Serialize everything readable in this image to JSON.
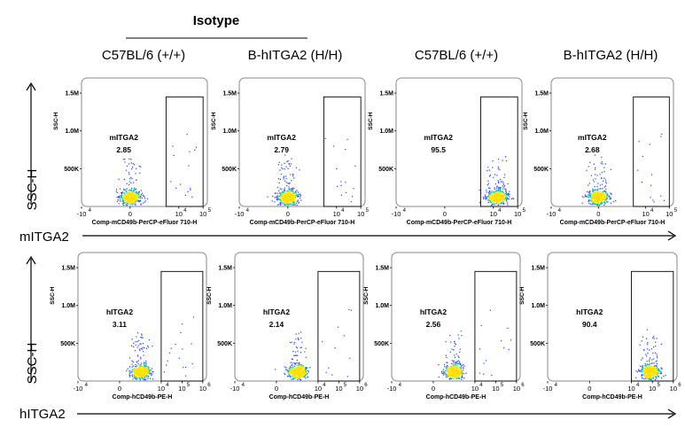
{
  "header": {
    "isotype": "Isotype",
    "columns": [
      "C57BL/6 (+/+)",
      "B-hITGA2 (H/H)",
      "C57BL/6 (+/+)",
      "B-hITGA2 (H/H)"
    ]
  },
  "rows": [
    {
      "y_axis_label": "SSC-H",
      "x_axis_label": "mITGA2"
    },
    {
      "y_axis_label": "SSC-H",
      "x_axis_label": "hITGA2"
    }
  ],
  "colors": {
    "gate": "#000000",
    "density_low": "#1f3cff",
    "density_mid": "#00c8a0",
    "density_high": "#ffe000"
  },
  "chart_data": [
    {
      "type": "scatter",
      "panel": "row1-col1",
      "xlabel": "Comp-mCD49b-PerCP-eFluor 710-H",
      "ylabel": "SSC-H",
      "xticks": [
        "-10",
        "4",
        "0",
        "10",
        "4",
        "10",
        "5"
      ],
      "yticks": [
        "1.5M",
        "1.0M",
        "500K"
      ],
      "gate": {
        "name": "mITGA2",
        "percent": "2.85",
        "x_range": [
          3000,
          100000
        ],
        "y_range": [
          0,
          1450000
        ]
      },
      "population": {
        "center_x": 0,
        "center_y": 120000,
        "positive_fraction": 0.0285
      }
    },
    {
      "type": "scatter",
      "panel": "row1-col2",
      "xlabel": "Comp-mCD49b-PerCP-eFluor 710-H",
      "ylabel": "SSC-H",
      "xticks": [
        "-10",
        "4",
        "0",
        "10",
        "4",
        "10",
        "5"
      ],
      "yticks": [
        "1.5M",
        "1.0M",
        "500K"
      ],
      "gate": {
        "name": "mITGA2",
        "percent": "2.79",
        "x_range": [
          3000,
          100000
        ],
        "y_range": [
          0,
          1450000
        ]
      },
      "population": {
        "center_x": 0,
        "center_y": 120000,
        "positive_fraction": 0.0279
      }
    },
    {
      "type": "scatter",
      "panel": "row1-col3",
      "xlabel": "Comp-mCD49b-PerCP-eFluor 710-H",
      "ylabel": "SSC-H",
      "xticks": [
        "-10",
        "4",
        "0",
        "10",
        "4",
        "10",
        "5"
      ],
      "yticks": [
        "1.5M",
        "1.0M",
        "500K"
      ],
      "gate": {
        "name": "mITGA2",
        "percent": "95.5",
        "x_range": [
          3000,
          100000
        ],
        "y_range": [
          0,
          1450000
        ]
      },
      "population": {
        "center_x": 15000,
        "center_y": 120000,
        "positive_fraction": 0.955
      }
    },
    {
      "type": "scatter",
      "panel": "row1-col4",
      "xlabel": "Comp-mCD49b-PerCP-eFluor 710-H",
      "ylabel": "SSC-H",
      "xticks": [
        "-10",
        "4",
        "0",
        "10",
        "4",
        "10",
        "5"
      ],
      "yticks": [
        "1.5M",
        "1.0M",
        "500K"
      ],
      "gate": {
        "name": "mITGA2",
        "percent": "2.68",
        "x_range": [
          3000,
          100000
        ],
        "y_range": [
          0,
          1450000
        ]
      },
      "population": {
        "center_x": 0,
        "center_y": 120000,
        "positive_fraction": 0.0268
      }
    },
    {
      "type": "scatter",
      "panel": "row2-col1",
      "xlabel": "Comp-hCD49b-PE-H",
      "ylabel": "SSC-H",
      "xticks": [
        "-10",
        "4",
        "0",
        "10",
        "4",
        "10",
        "5",
        "10",
        "6"
      ],
      "yticks": [
        "1.5M",
        "1.0M",
        "500K"
      ],
      "gate": {
        "name": "hITGA2",
        "percent": "3.11",
        "x_range": [
          10000,
          1000000
        ],
        "y_range": [
          0,
          1450000
        ]
      },
      "population": {
        "center_x": 1000,
        "center_y": 120000,
        "positive_fraction": 0.0311
      }
    },
    {
      "type": "scatter",
      "panel": "row2-col2",
      "xlabel": "Comp-hCD49b-PE-H",
      "ylabel": "SSC-H",
      "xticks": [
        "-10",
        "4",
        "0",
        "10",
        "4",
        "10",
        "5",
        "10",
        "6"
      ],
      "yticks": [
        "1.5M",
        "1.0M",
        "500K"
      ],
      "gate": {
        "name": "hITGA2",
        "percent": "2.14",
        "x_range": [
          10000,
          1000000
        ],
        "y_range": [
          0,
          1450000
        ]
      },
      "population": {
        "center_x": 1000,
        "center_y": 120000,
        "positive_fraction": 0.0214
      }
    },
    {
      "type": "scatter",
      "panel": "row2-col3",
      "xlabel": "Comp-hCD49b-PE-H",
      "ylabel": "SSC-H",
      "xticks": [
        "-10",
        "4",
        "0",
        "10",
        "4",
        "10",
        "5",
        "10",
        "6"
      ],
      "yticks": [
        "1.5M",
        "1.0M",
        "500K"
      ],
      "gate": {
        "name": "hITGA2",
        "percent": "2.56",
        "x_range": [
          10000,
          1000000
        ],
        "y_range": [
          0,
          1450000
        ]
      },
      "population": {
        "center_x": 1000,
        "center_y": 120000,
        "positive_fraction": 0.0256
      }
    },
    {
      "type": "scatter",
      "panel": "row2-col4",
      "xlabel": "Comp-hCD49b-PE-H",
      "ylabel": "SSC-H",
      "xticks": [
        "-10",
        "4",
        "0",
        "10",
        "4",
        "10",
        "5",
        "10",
        "6"
      ],
      "yticks": [
        "1.5M",
        "1.0M",
        "500K"
      ],
      "gate": {
        "name": "hITGA2",
        "percent": "90.4",
        "x_range": [
          10000,
          1000000
        ],
        "y_range": [
          0,
          1450000
        ]
      },
      "population": {
        "center_x": 80000,
        "center_y": 120000,
        "positive_fraction": 0.904
      }
    }
  ]
}
